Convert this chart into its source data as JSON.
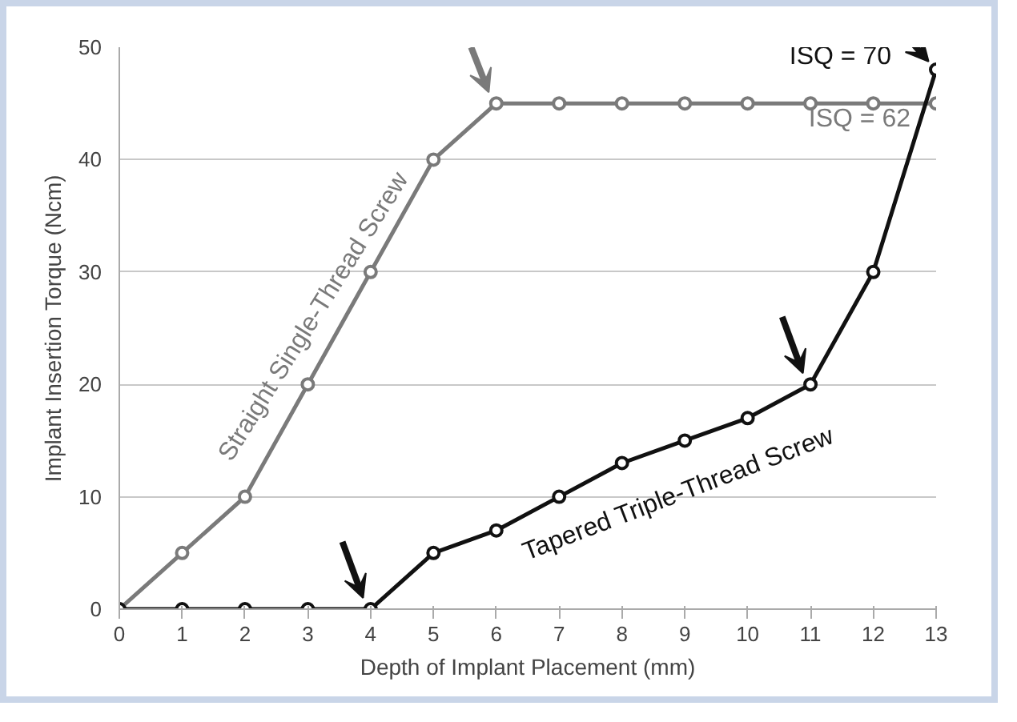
{
  "chart_data": {
    "type": "line",
    "xlabel": "Depth of Implant Placement (mm)",
    "ylabel": "Implant Insertion Torque (Ncm)",
    "x": [
      0,
      1,
      2,
      3,
      4,
      5,
      6,
      7,
      8,
      9,
      10,
      11,
      12,
      13
    ],
    "series": [
      {
        "name": "Straight Single-Thread Screw",
        "color": "#7a7a7a",
        "values": [
          0,
          5,
          10,
          20,
          30,
          40,
          45,
          45,
          45,
          45,
          45,
          45,
          45,
          45
        ]
      },
      {
        "name": "Tapered Triple-Thread Screw",
        "color": "#111111",
        "values": [
          0,
          0,
          0,
          0,
          0,
          5,
          7,
          10,
          13,
          15,
          17,
          20,
          30,
          48
        ]
      }
    ],
    "annotations": [
      {
        "text": "ISQ = 70",
        "x": 13,
        "y": 48
      },
      {
        "text": "ISQ = 62",
        "x": 13,
        "y": 45
      }
    ],
    "xlim": [
      0,
      13
    ],
    "ylim": [
      0,
      50
    ],
    "xticks": [
      0,
      1,
      2,
      3,
      4,
      5,
      6,
      7,
      8,
      9,
      10,
      11,
      12,
      13
    ],
    "yticks": [
      0,
      10,
      20,
      30,
      40,
      50
    ],
    "grid": "y",
    "marker": "circle",
    "line_style": "solid"
  }
}
